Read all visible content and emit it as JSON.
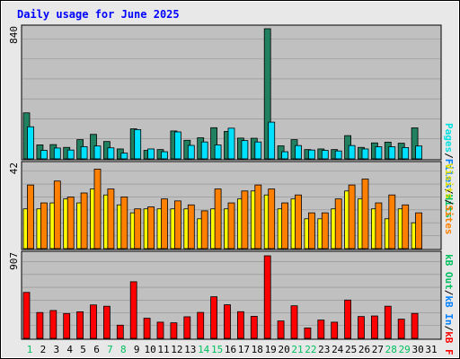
{
  "chart_data": [
    {
      "type": "bar",
      "title": "Daily usage for June 2025",
      "categories": [
        "1",
        "2",
        "3",
        "4",
        "5",
        "6",
        "7",
        "8",
        "9",
        "10",
        "11",
        "12",
        "13",
        "14",
        "15",
        "16",
        "17",
        "18",
        "19",
        "20",
        "21",
        "22",
        "23",
        "24",
        "25",
        "26",
        "27",
        "28",
        "29",
        "30",
        "31"
      ],
      "weekend_categories": [
        "1",
        "7",
        "8",
        "14",
        "15",
        "21",
        "22",
        "28",
        "29"
      ],
      "ymax_label": "840",
      "ylim": [
        0,
        840
      ],
      "legend": [
        "Pages",
        "Files",
        "Hits"
      ],
      "series": [
        {
          "name": "Hits",
          "color": "#208060",
          "values": [
            297,
            90,
            92,
            74,
            124,
            158,
            112,
            64,
            194,
            55,
            60,
            180,
            120,
            136,
            201,
            177,
            134,
            133,
            840,
            84,
            124,
            60,
            64,
            60,
            150,
            74,
            103,
            108,
            101,
            200,
            null
          ]
        },
        {
          "name": "Files",
          "color": "#00e0ff",
          "values": [
            207,
            55,
            70,
            57,
            79,
            83,
            71,
            37,
            189,
            64,
            46,
            174,
            87,
            109,
            90,
            198,
            118,
            109,
            237,
            46,
            86,
            57,
            55,
            51,
            86,
            64,
            78,
            78,
            73,
            83,
            null
          ]
        }
      ]
    },
    {
      "type": "bar",
      "ymax_label": "42",
      "ylim": [
        0,
        42
      ],
      "legend": [
        "Visits",
        "Sites"
      ],
      "series": [
        {
          "name": "Visits",
          "color": "#ffff00",
          "values": [
            20,
            20,
            23,
            25,
            23,
            30,
            27,
            22,
            18,
            20,
            20,
            20,
            20,
            15,
            20,
            20,
            25,
            29,
            27,
            20,
            25,
            15,
            15,
            20,
            29,
            25,
            20,
            15,
            20,
            13,
            null
          ]
        },
        {
          "name": "Sites",
          "color": "#ff8000",
          "values": [
            32,
            23,
            34,
            26,
            28,
            40,
            30,
            26,
            20,
            21,
            25,
            24,
            22,
            19,
            30,
            23,
            29,
            32,
            30,
            23,
            27,
            18,
            18,
            25,
            32,
            35,
            23,
            27,
            22,
            18,
            null
          ]
        }
      ]
    },
    {
      "type": "bar",
      "ymax_label": "907",
      "ylim": [
        0,
        907
      ],
      "legend": [
        "KB F",
        "KB In",
        "KB Out"
      ],
      "series": [
        {
          "name": "KB F",
          "color": "#ff0000",
          "values": [
            505,
            284,
            306,
            273,
            292,
            367,
            353,
            145,
            622,
            221,
            178,
            171,
            237,
            285,
            457,
            369,
            293,
            242,
            907,
            191,
            358,
            114,
            201,
            178,
            421,
            240,
            246,
            353,
            211,
            274,
            null
          ]
        }
      ]
    }
  ],
  "panel_labels": {
    "top": {
      "pages": "Pages",
      "files": "Files",
      "hits": "Hits",
      "sep": "/"
    },
    "mid": {
      "sites": "Sites",
      "visits": "Visits",
      "sep": "/"
    },
    "bot": {
      "kbf": "kB F",
      "kbin": "kB In",
      "kbout": "kB Out",
      "sep": "/"
    }
  },
  "colors": {
    "background": "#ffffff",
    "panel_bg": "#c0c0c0",
    "title": "#0000ff",
    "weekday_label": "#0000ff",
    "weekend_label": "#00c060",
    "pages": "#00e0e0",
    "files": "#0080ff",
    "hits": "#00c060",
    "visits": "#e0e000",
    "sites": "#ff8000",
    "kb_f": "#ff0000",
    "kb_in": "#0080ff",
    "kb_out": "#00c060"
  }
}
